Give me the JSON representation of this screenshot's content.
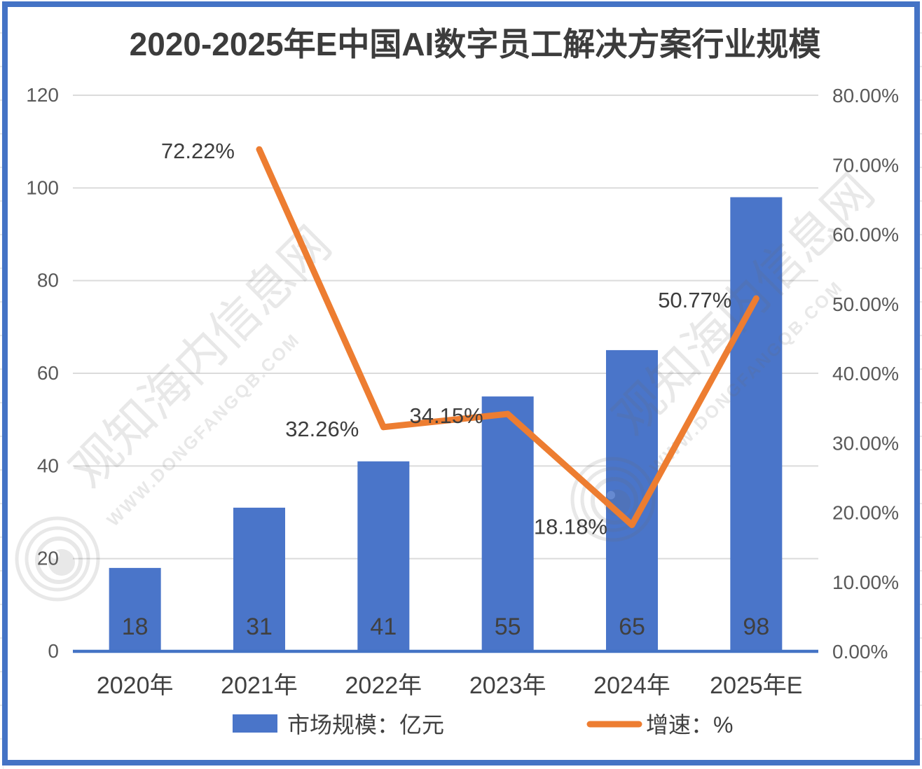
{
  "title": "2020-2025年E中国AI数字员工解决方案行业规模",
  "frame": {
    "border_color": "#4473C5"
  },
  "chart_data": {
    "type": "combo-bar-line",
    "categories": [
      "2020年",
      "2021年",
      "2022年",
      "2023年",
      "2024年",
      "2025年E"
    ],
    "bar_series": {
      "name": "市场规模：亿元",
      "values": [
        18,
        31,
        41,
        55,
        65,
        98
      ],
      "labels": [
        "18",
        "31",
        "41",
        "55",
        "65",
        "98"
      ],
      "color": "#4A75C9",
      "axis": "left",
      "label_position": "inside-base"
    },
    "line_series": {
      "name": "增速：%",
      "values": [
        null,
        72.22,
        32.26,
        34.15,
        18.18,
        50.77
      ],
      "labels": [
        null,
        "72.22%",
        "32.26%",
        "34.15%",
        "18.18%",
        "50.77%"
      ],
      "color": "#ED7D31",
      "axis": "right",
      "label_position": "left-of-point"
    },
    "left_axis": {
      "min": 0,
      "max": 120,
      "step": 20,
      "ticks": [
        "0",
        "20",
        "40",
        "60",
        "80",
        "100",
        "120"
      ]
    },
    "right_axis": {
      "min": 0,
      "max": 80,
      "step": 10,
      "ticks": [
        "0.00%",
        "10.00%",
        "20.00%",
        "30.00%",
        "40.00%",
        "50.00%",
        "60.00%",
        "70.00%",
        "80.00%"
      ]
    },
    "grid": true,
    "gridline_color": "#DBDBDB",
    "axis_line_color": "#4473C5",
    "legend_position": "bottom"
  },
  "legend": {
    "bar_label": "市场规模：亿元",
    "line_label": "增速：%"
  },
  "watermark": {
    "text": "观知海内信息网",
    "url": "WWW.DONGFANGQB.COM"
  }
}
